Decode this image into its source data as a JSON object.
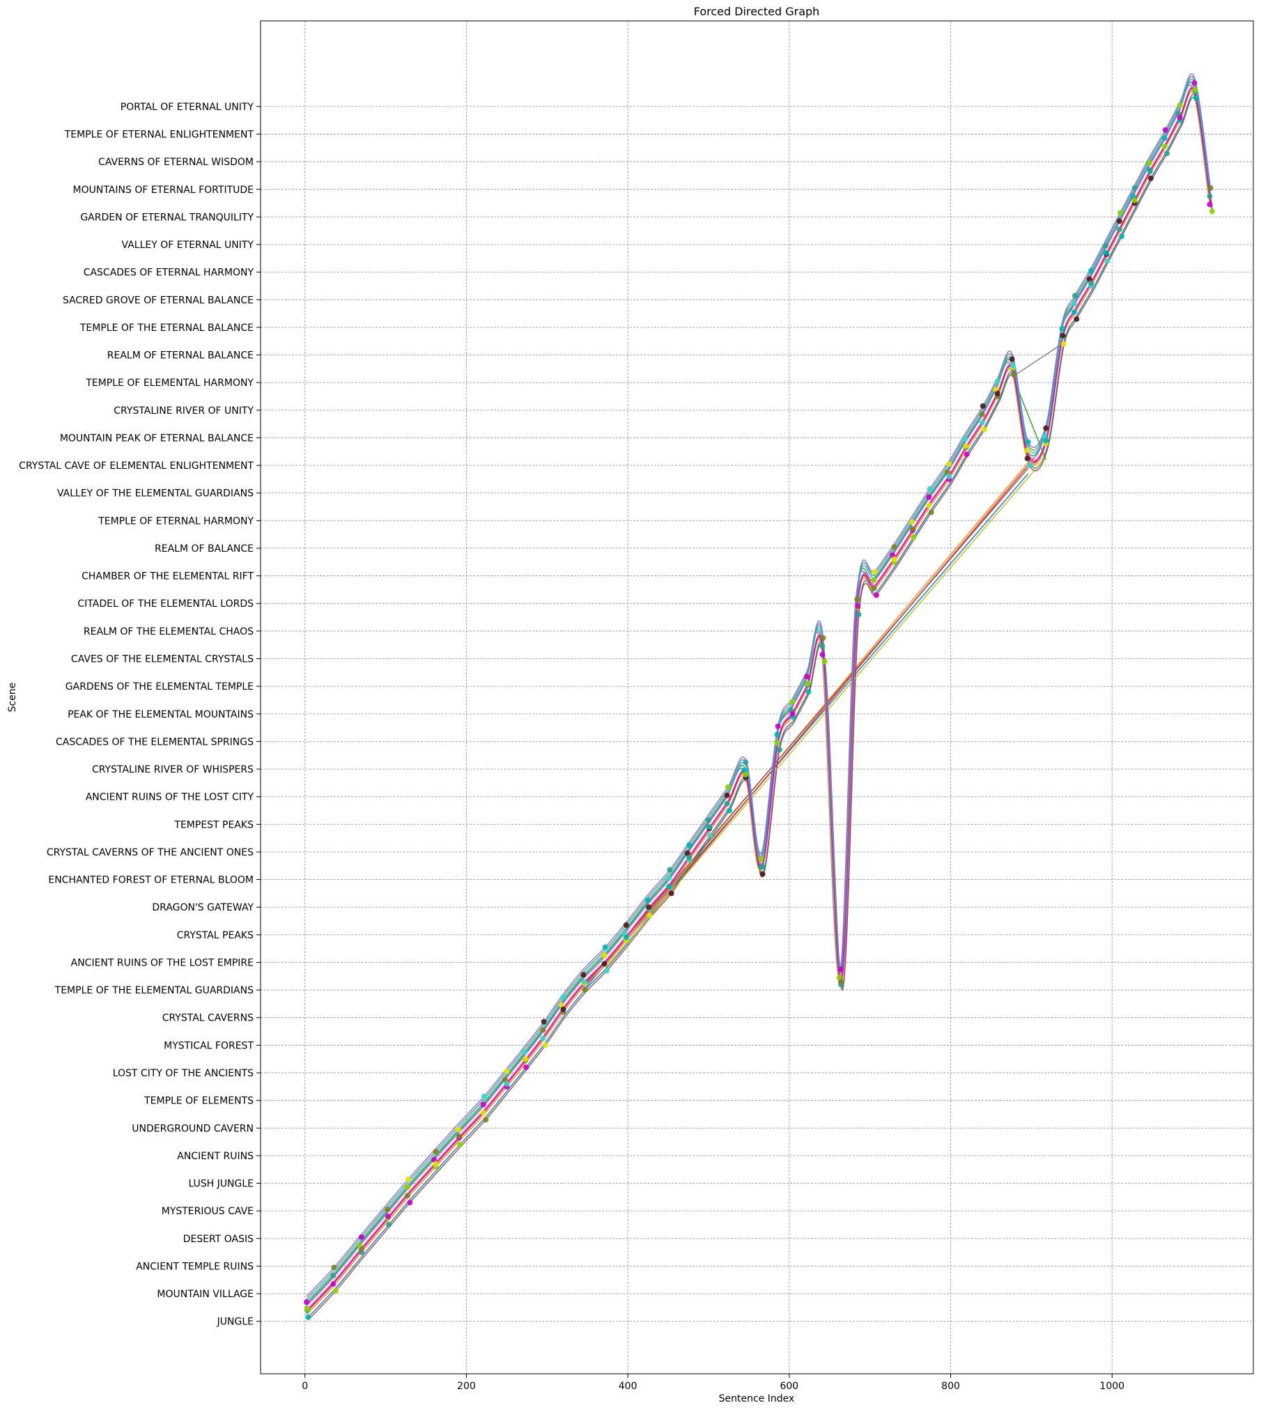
{
  "chart_data": {
    "type": "line",
    "title": "Forced Directed Graph",
    "xlabel": "Sentence Index",
    "ylabel": "Scene",
    "xlim": [
      -55,
      1175
    ],
    "ylim": [
      -1.9,
      47.1
    ],
    "xticks": [
      0,
      200,
      400,
      600,
      800,
      1000
    ],
    "grid": true,
    "scenes": [
      "JUNGLE",
      "MOUNTAIN VILLAGE",
      "ANCIENT TEMPLE RUINS",
      "DESERT OASIS",
      "MYSTERIOUS CAVE",
      "LUSH JUNGLE",
      "ANCIENT RUINS",
      "UNDERGROUND CAVERN",
      "TEMPLE OF ELEMENTS",
      "LOST CITY OF THE ANCIENTS",
      "MYSTICAL FOREST",
      "CRYSTAL CAVERNS",
      "TEMPLE OF THE ELEMENTAL GUARDIANS",
      "ANCIENT RUINS OF THE LOST EMPIRE",
      "CRYSTAL PEAKS",
      "DRAGON'S GATEWAY",
      "ENCHANTED FOREST OF ETERNAL BLOOM",
      "CRYSTAL CAVERNS OF THE ANCIENT ONES",
      "TEMPEST PEAKS",
      "ANCIENT RUINS OF THE LOST CITY",
      "CRYSTALINE RIVER OF WHISPERS",
      "CASCADES OF THE ELEMENTAL SPRINGS",
      "PEAK OF THE ELEMENTAL MOUNTAINS",
      "GARDENS OF THE ELEMENTAL TEMPLE",
      "CAVES OF THE ELEMENTAL CRYSTALS",
      "REALM OF THE ELEMENTAL CHAOS",
      "CITADEL OF THE ELEMENTAL LORDS",
      "CHAMBER OF THE ELEMENTAL RIFT",
      "REALM OF BALANCE",
      "TEMPLE OF ETERNAL HARMONY",
      "VALLEY OF THE ELEMENTAL GUARDIANS",
      "CRYSTAL CAVE OF ELEMENTAL ENLIGHTENMENT",
      "MOUNTAIN PEAK OF ETERNAL BALANCE",
      "CRYSTALINE RIVER OF UNITY",
      "TEMPLE OF ELEMENTAL HARMONY",
      "REALM OF ETERNAL BALANCE",
      "TEMPLE OF THE ETERNAL BALANCE",
      "SACRED GROVE OF ETERNAL BALANCE",
      "CASCADES OF ETERNAL HARMONY",
      "VALLEY OF ETERNAL UNITY",
      "GARDEN OF ETERNAL TRANQUILITY",
      "MOUNTAINS OF ETERNAL FORTITUDE",
      "CAVERNS OF ETERNAL WISDOM",
      "TEMPLE OF ETERNAL ENLIGHTENMENT",
      "PORTAL OF ETERNAL UNITY"
    ],
    "base_path": [
      [
        2,
        0.35
      ],
      [
        36,
        1.4
      ],
      [
        70,
        2.6
      ],
      [
        102,
        3.7
      ],
      [
        128,
        4.6
      ],
      [
        162,
        5.7
      ],
      [
        190,
        6.6
      ],
      [
        222,
        7.6
      ],
      [
        250,
        8.6
      ],
      [
        272,
        9.4
      ],
      [
        296,
        10.3
      ],
      [
        320,
        11.3
      ],
      [
        345,
        12.2
      ],
      [
        372,
        13.0
      ],
      [
        398,
        13.9
      ],
      [
        425,
        14.9
      ],
      [
        452,
        15.8
      ],
      [
        476,
        16.8
      ],
      [
        500,
        17.8
      ],
      [
        524,
        18.8
      ],
      [
        546,
        19.8
      ],
      [
        565,
        16.4
      ],
      [
        586,
        21.0
      ],
      [
        604,
        22.0
      ],
      [
        622,
        23.0
      ],
      [
        642,
        24.2
      ],
      [
        664,
        12.3
      ],
      [
        684,
        25.8
      ],
      [
        706,
        26.6
      ],
      [
        730,
        27.6
      ],
      [
        752,
        28.6
      ],
      [
        774,
        29.6
      ],
      [
        798,
        30.6
      ],
      [
        818,
        31.6
      ],
      [
        840,
        32.6
      ],
      [
        858,
        33.6
      ],
      [
        876,
        34.5
      ],
      [
        896,
        31.3
      ],
      [
        918,
        31.9
      ],
      [
        938,
        35.6
      ],
      [
        954,
        36.6
      ],
      [
        974,
        37.6
      ],
      [
        992,
        38.6
      ],
      [
        1010,
        39.6
      ],
      [
        1028,
        40.6
      ],
      [
        1046,
        41.6
      ],
      [
        1066,
        42.6
      ],
      [
        1084,
        43.6
      ],
      [
        1102,
        44.5
      ],
      [
        1122,
        40.5
      ]
    ],
    "series": [
      {
        "color": "#1f77b4",
        "dy": -0.2,
        "dx": 2,
        "direct": [
          [
            345,
            12.0
          ],
          [
            896,
            30.7
          ]
        ]
      },
      {
        "color": "#ff7f0e",
        "dy": -0.1,
        "dx": 0,
        "direct": [
          [
            372,
            12.9
          ],
          [
            896,
            31.1
          ]
        ]
      },
      {
        "color": "#2ca02c",
        "dy": 0.25,
        "dx": -1,
        "direct": [
          [
            876,
            34.3
          ],
          [
            918,
            31.2
          ]
        ]
      },
      {
        "color": "#d62728",
        "dy": 0.05,
        "dx": 1,
        "direct": [
          [
            425,
            14.6
          ],
          [
            896,
            31.0
          ]
        ]
      },
      {
        "color": "#9467bd",
        "dy": 0.15,
        "dx": -2,
        "direct": null
      },
      {
        "color": "#8c564b",
        "dy": -0.3,
        "dx": 2,
        "direct": [
          [
            345,
            12.1
          ],
          [
            896,
            30.9
          ]
        ]
      },
      {
        "color": "#e377c2",
        "dy": 0.1,
        "dx": 1,
        "direct": null
      },
      {
        "color": "#7f7f7f",
        "dy": 0.45,
        "dx": 0,
        "direct": [
          [
            876,
            34.2
          ],
          [
            938,
            35.4
          ]
        ]
      },
      {
        "color": "#bcbd22",
        "dy": -0.05,
        "dx": -1,
        "direct": [
          [
            372,
            12.8
          ],
          [
            918,
            31.3
          ]
        ]
      },
      {
        "color": "#17becf",
        "dy": 0.35,
        "dx": 0,
        "direct": null
      },
      {
        "color": "#c800c8",
        "dy": 0.0,
        "dx": 0,
        "direct": null
      },
      {
        "color": "#6a7fc8",
        "dy": 0.55,
        "dx": 0,
        "direct": null
      }
    ],
    "marker_colors": [
      "#00b3b3",
      "#c800c8",
      "#3ad6c8",
      "#2e9e8f",
      "#7f7f2a",
      "#4a1a1a",
      "#8bd400",
      "#e4e400"
    ]
  }
}
